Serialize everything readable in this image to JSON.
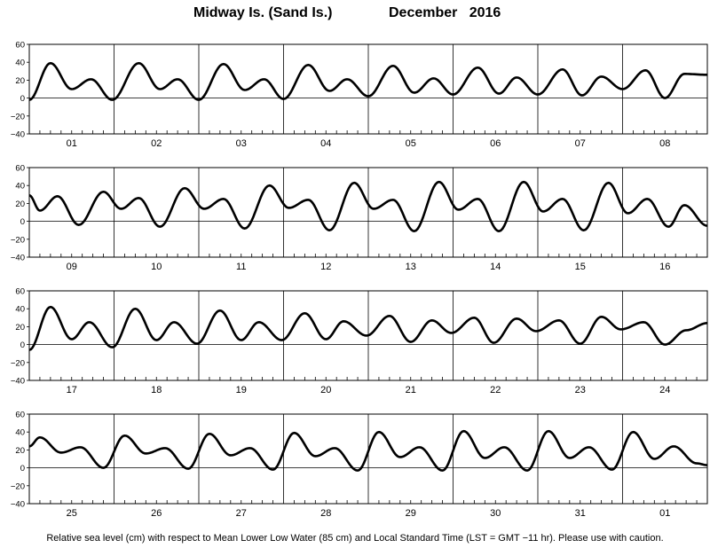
{
  "header": {
    "location": "Midway Is. (Sand Is.)",
    "month_label": "December   2016"
  },
  "footnote": "Relative sea level (cm) with respect to Mean Lower Low Water (85 cm) and Local Standard Time (LST = GMT −11 hr). Please use with caution.",
  "chart_data": {
    "type": "line",
    "y_ticks": [
      "60",
      "40",
      "20",
      "0",
      "−20",
      "−40"
    ],
    "ylim": [
      -40,
      60
    ],
    "grid": "vertical lines at day boundaries, horizontal line at 0",
    "series_color": "#000000",
    "panels": [
      {
        "days": [
          "01",
          "02",
          "03",
          "04",
          "05",
          "06",
          "07",
          "08"
        ],
        "tide_extrema_hours": [
          [
            0,
            -2
          ],
          [
            6,
            39
          ],
          [
            12,
            10
          ],
          [
            17.5,
            21
          ],
          [
            23.5,
            -2
          ],
          [
            31,
            39
          ],
          [
            37,
            10
          ],
          [
            42,
            21
          ],
          [
            48,
            -2
          ],
          [
            55,
            38
          ],
          [
            61,
            9
          ],
          [
            66.5,
            21
          ],
          [
            72,
            -1
          ],
          [
            79,
            37
          ],
          [
            85,
            8
          ],
          [
            90,
            21
          ],
          [
            96,
            2
          ],
          [
            103,
            36
          ],
          [
            109,
            6
          ],
          [
            114.5,
            22
          ],
          [
            120,
            4
          ],
          [
            127,
            34
          ],
          [
            133,
            5
          ],
          [
            138,
            23
          ],
          [
            144,
            4
          ],
          [
            151,
            32
          ],
          [
            156.5,
            3
          ],
          [
            162,
            24
          ],
          [
            168,
            10
          ],
          [
            174.5,
            31
          ],
          [
            180,
            0
          ],
          [
            185.5,
            27
          ],
          [
            192,
            26
          ]
        ]
      },
      {
        "days": [
          "09",
          "10",
          "11",
          "12",
          "13",
          "14",
          "15",
          "16"
        ],
        "tide_extrema_hours": [
          [
            0,
            29
          ],
          [
            3,
            12
          ],
          [
            8,
            28
          ],
          [
            14,
            -4
          ],
          [
            21,
            33
          ],
          [
            26,
            14
          ],
          [
            31,
            26
          ],
          [
            37,
            -6
          ],
          [
            44,
            37
          ],
          [
            49.5,
            14
          ],
          [
            55,
            25
          ],
          [
            61,
            -8
          ],
          [
            68,
            40
          ],
          [
            73.5,
            15
          ],
          [
            79,
            24
          ],
          [
            85,
            -10
          ],
          [
            92,
            43
          ],
          [
            97.5,
            14
          ],
          [
            103,
            24
          ],
          [
            109,
            -11
          ],
          [
            116,
            44
          ],
          [
            121.5,
            13
          ],
          [
            127,
            25
          ],
          [
            133,
            -11
          ],
          [
            140,
            44
          ],
          [
            145.5,
            11
          ],
          [
            151,
            25
          ],
          [
            157,
            -10
          ],
          [
            164,
            43
          ],
          [
            169.5,
            9
          ],
          [
            175,
            25
          ],
          [
            181,
            -6
          ],
          [
            185.5,
            18
          ],
          [
            192,
            -5
          ]
        ]
      },
      {
        "days": [
          "17",
          "18",
          "19",
          "20",
          "21",
          "22",
          "23",
          "24"
        ],
        "tide_extrema_hours": [
          [
            0,
            -6
          ],
          [
            6,
            42
          ],
          [
            12,
            6
          ],
          [
            17,
            25
          ],
          [
            23.5,
            -3
          ],
          [
            30,
            40
          ],
          [
            36,
            5
          ],
          [
            41,
            25
          ],
          [
            47.5,
            1
          ],
          [
            54,
            38
          ],
          [
            60,
            5
          ],
          [
            65,
            25
          ],
          [
            71.5,
            5
          ],
          [
            78,
            35
          ],
          [
            84,
            6
          ],
          [
            89,
            26
          ],
          [
            95.5,
            10
          ],
          [
            102,
            32
          ],
          [
            108,
            3
          ],
          [
            114,
            27
          ],
          [
            119.5,
            13
          ],
          [
            126,
            30
          ],
          [
            131.5,
            2
          ],
          [
            138,
            29
          ],
          [
            143.5,
            15
          ],
          [
            150,
            27
          ],
          [
            156,
            1
          ],
          [
            162,
            31
          ],
          [
            167.5,
            17
          ],
          [
            174,
            25
          ],
          [
            180,
            0
          ],
          [
            186,
            16
          ],
          [
            192,
            24
          ]
        ]
      },
      {
        "days": [
          "25",
          "26",
          "27",
          "28",
          "29",
          "30",
          "31",
          "01"
        ],
        "tide_extrema_hours": [
          [
            0,
            24
          ],
          [
            3,
            34
          ],
          [
            9,
            17
          ],
          [
            14.5,
            23
          ],
          [
            21,
            0
          ],
          [
            27,
            36
          ],
          [
            33,
            16
          ],
          [
            38.5,
            22
          ],
          [
            45,
            -1
          ],
          [
            51,
            38
          ],
          [
            57,
            14
          ],
          [
            62.5,
            22
          ],
          [
            69,
            -2
          ],
          [
            75,
            39
          ],
          [
            81,
            13
          ],
          [
            86.5,
            22
          ],
          [
            93,
            -3
          ],
          [
            99,
            40
          ],
          [
            105,
            12
          ],
          [
            110.5,
            23
          ],
          [
            117,
            -3
          ],
          [
            123,
            41
          ],
          [
            129,
            11
          ],
          [
            134.5,
            23
          ],
          [
            141,
            -3
          ],
          [
            147,
            41
          ],
          [
            153,
            11
          ],
          [
            158.5,
            23
          ],
          [
            165,
            -2
          ],
          [
            171,
            40
          ],
          [
            177,
            10
          ],
          [
            182.5,
            24
          ],
          [
            189,
            5
          ],
          [
            192,
            3
          ]
        ]
      }
    ]
  }
}
